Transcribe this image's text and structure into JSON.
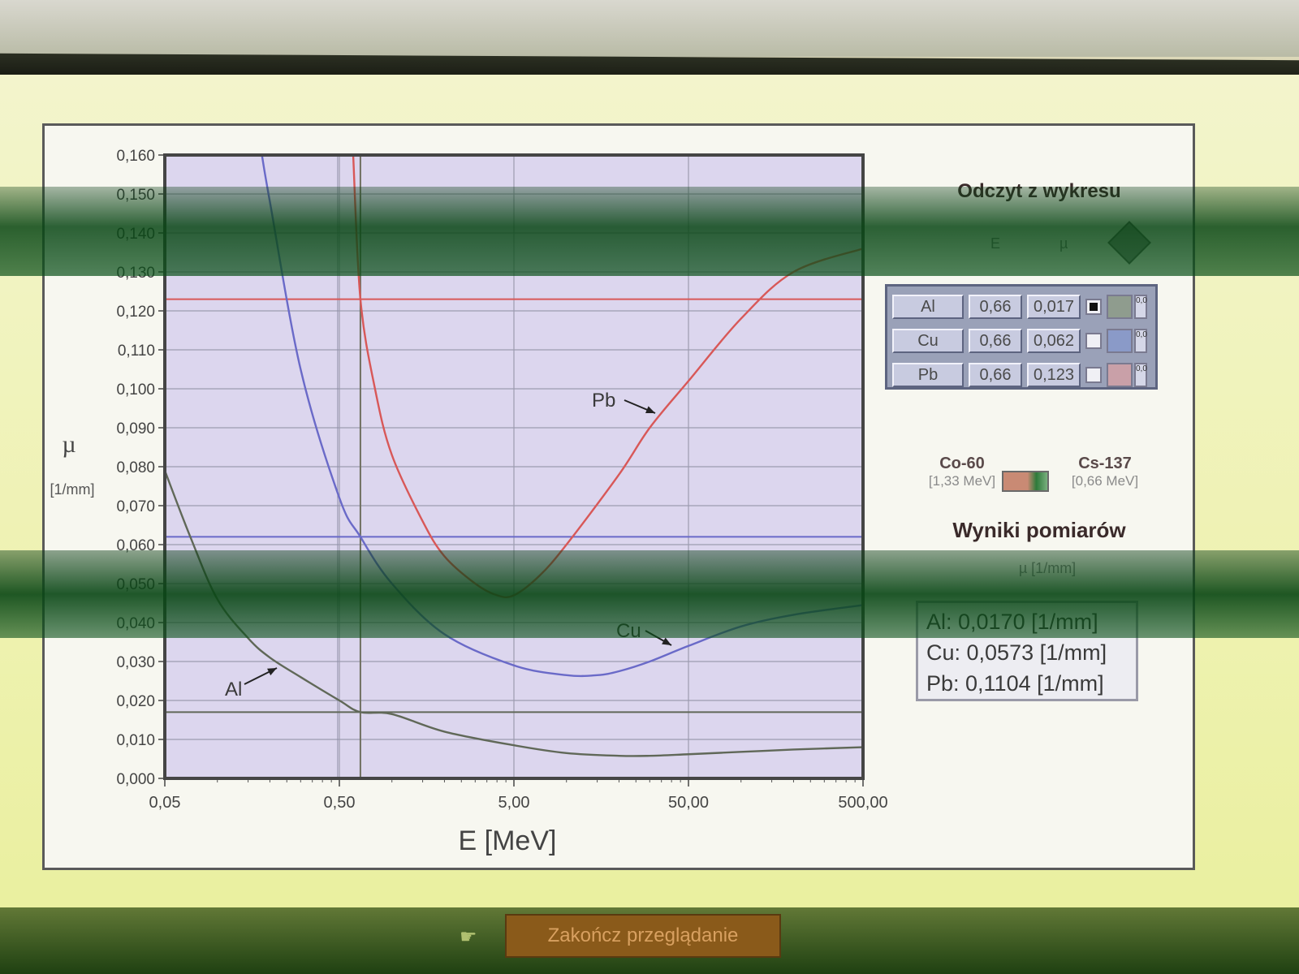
{
  "chart_data": {
    "type": "line",
    "xlabel": "E [MeV]",
    "ylabel": "µ",
    "ylabel_unit": "[1/mm]",
    "xscale": "log",
    "xlim": [
      0.05,
      500.0
    ],
    "ylim": [
      0.0,
      0.16
    ],
    "x_tick_labels": [
      "0,05",
      "0,50",
      "5,00",
      "50,00",
      "500,00"
    ],
    "x_tick_values": [
      0.05,
      0.5,
      5.0,
      50.0,
      500.0
    ],
    "y_tick_labels": [
      "0,000",
      "0,010",
      "0,020",
      "0,030",
      "0,040",
      "0,050",
      "0,060",
      "0,070",
      "0,080",
      "0,090",
      "0,100",
      "0,110",
      "0,120",
      "0,130",
      "0,140",
      "0,150",
      "0,160"
    ],
    "y_tick_values": [
      0.0,
      0.01,
      0.02,
      0.03,
      0.04,
      0.05,
      0.06,
      0.07,
      0.08,
      0.09,
      0.1,
      0.11,
      0.12,
      0.13,
      0.14,
      0.15,
      0.16
    ],
    "grid": true,
    "series": [
      {
        "name": "Al",
        "color": "#606858",
        "x": [
          0.05,
          0.07,
          0.1,
          0.15,
          0.2,
          0.3,
          0.5,
          0.66,
          1.0,
          2.0,
          5.0,
          10.0,
          20.0,
          30.0,
          50.0,
          100.0,
          200.0,
          500.0
        ],
        "y": [
          0.079,
          0.062,
          0.046,
          0.036,
          0.031,
          0.026,
          0.02,
          0.017,
          0.0165,
          0.012,
          0.0085,
          0.0065,
          0.0058,
          0.0058,
          0.0062,
          0.0068,
          0.0074,
          0.008
        ]
      },
      {
        "name": "Cu",
        "color": "#6a6ac8",
        "x": [
          0.18,
          0.2,
          0.3,
          0.5,
          0.66,
          1.0,
          2.0,
          5.0,
          10.0,
          15.0,
          20.0,
          30.0,
          50.0,
          100.0,
          200.0,
          500.0
        ],
        "y": [
          0.16,
          0.148,
          0.105,
          0.072,
          0.062,
          0.05,
          0.037,
          0.029,
          0.0265,
          0.0265,
          0.0275,
          0.03,
          0.034,
          0.039,
          0.042,
          0.0445
        ]
      },
      {
        "name": "Pb",
        "color": "#d85858",
        "x": [
          0.6,
          0.66,
          0.8,
          1.0,
          1.5,
          2.0,
          3.0,
          4.0,
          5.0,
          7.0,
          10.0,
          20.0,
          30.0,
          50.0,
          100.0,
          200.0,
          500.0
        ],
        "y": [
          0.16,
          0.123,
          0.1,
          0.083,
          0.066,
          0.057,
          0.05,
          0.047,
          0.047,
          0.052,
          0.06,
          0.078,
          0.09,
          0.102,
          0.118,
          0.13,
          0.136
        ]
      }
    ],
    "annotations": [
      "Al",
      "Cu",
      "Pb"
    ],
    "reading_lines": [
      {
        "series": "Al",
        "y": 0.017
      },
      {
        "series": "Cu",
        "y": 0.062
      },
      {
        "series": "Pb",
        "y": 0.123
      }
    ],
    "reading_line_x": 0.66
  },
  "side": {
    "title": "Odczyt z wykresu",
    "col_e": "E",
    "col_mu": "µ",
    "rows": [
      {
        "name": "Al",
        "e": "0,66",
        "mu": "0,017",
        "checked": true,
        "swatch": "#8f9c8e"
      },
      {
        "name": "Cu",
        "e": "0,66",
        "mu": "0,062",
        "checked": false,
        "swatch": "#8a9ac8"
      },
      {
        "name": "Pb",
        "e": "0,66",
        "mu": "0,123",
        "checked": false,
        "swatch": "#c9a0a8"
      }
    ],
    "spin_label": "0,0",
    "source_left_name": "Co-60",
    "source_left_energy": "[1,33 MeV]",
    "source_right_name": "Cs-137",
    "source_right_energy": "[0,66 MeV]",
    "results_title": "Wyniki pomiarów",
    "results_unit": "µ [1/mm]",
    "results": [
      "Al: 0,0170 [1/mm]",
      "Cu: 0,0573 [1/mm]",
      "Pb: 0,1104 [1/mm]"
    ]
  },
  "footer": {
    "button_label": "Zakończ przeglądanie"
  },
  "colors": {
    "plot_bg": "#dcd6ee",
    "grid": "#9c9cb0",
    "frame": "#454545"
  }
}
